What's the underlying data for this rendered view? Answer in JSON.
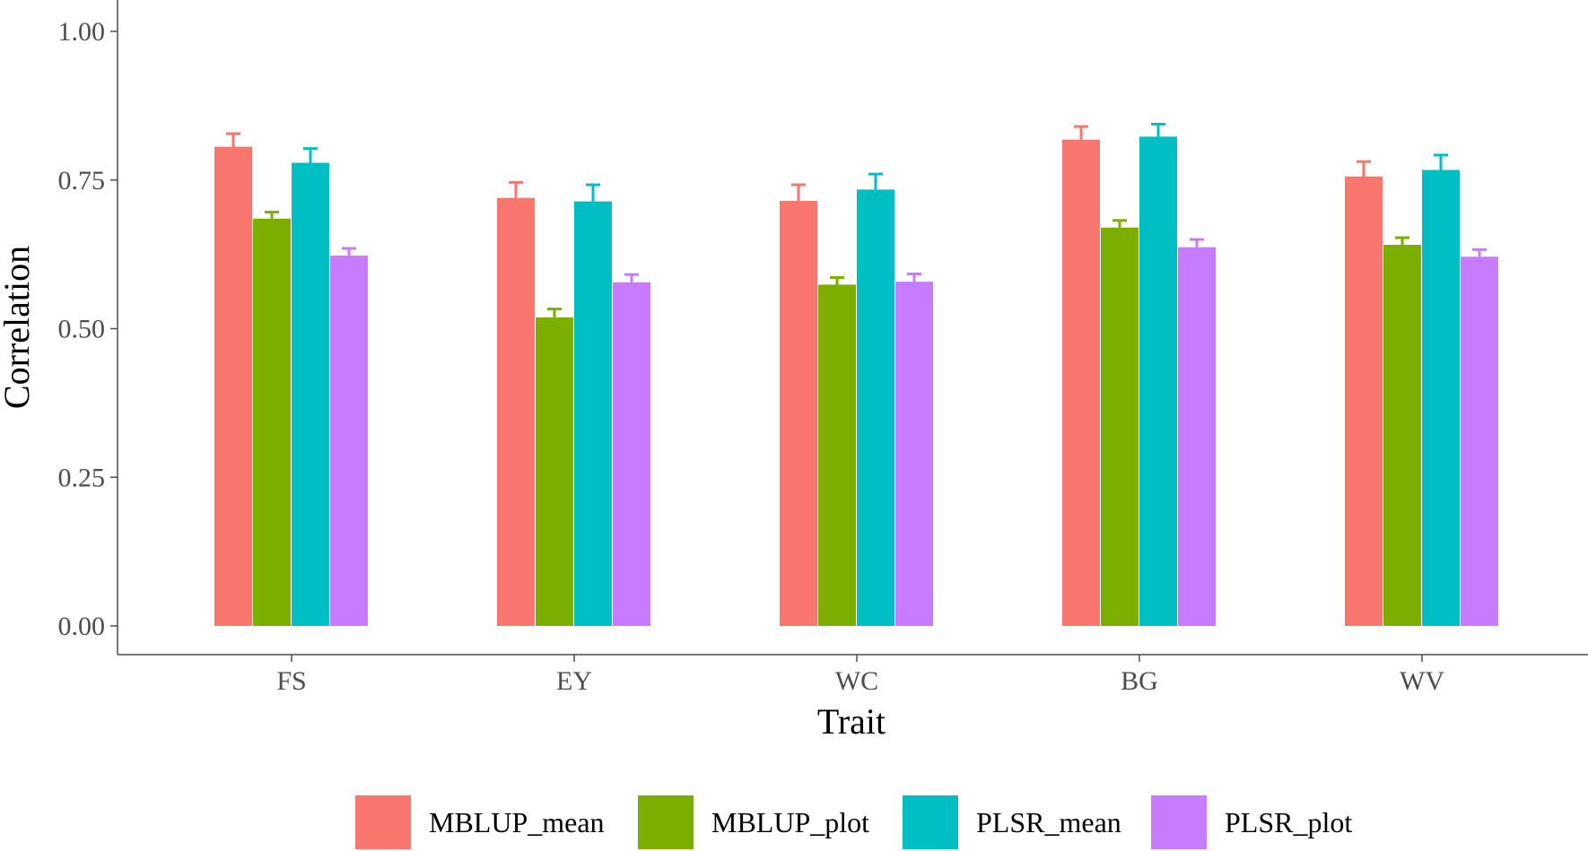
{
  "chart_data": {
    "type": "bar",
    "xlabel": "Trait",
    "ylabel": "Correlation",
    "ylim": [
      0,
      1.0
    ],
    "yticks": [
      "0.00",
      "0.25",
      "0.50",
      "0.75",
      "1.00"
    ],
    "ytick_values": [
      0,
      0.25,
      0.5,
      0.75,
      1.0
    ],
    "grid": false,
    "legend_position": "bottom",
    "categories": [
      "FS",
      "EY",
      "WC",
      "BG",
      "WV"
    ],
    "series": [
      {
        "name": "MBLUP_mean",
        "color": "#F8766D",
        "values": [
          0.806,
          0.72,
          0.715,
          0.818,
          0.756
        ],
        "errors": [
          0.022,
          0.026,
          0.027,
          0.022,
          0.025
        ]
      },
      {
        "name": "MBLUP_plot",
        "color": "#7CAE00",
        "values": [
          0.685,
          0.519,
          0.574,
          0.67,
          0.641
        ],
        "errors": [
          0.011,
          0.014,
          0.012,
          0.012,
          0.012
        ]
      },
      {
        "name": "PLSR_mean",
        "color": "#00BFC4",
        "values": [
          0.779,
          0.714,
          0.734,
          0.823,
          0.767
        ],
        "errors": [
          0.024,
          0.028,
          0.026,
          0.021,
          0.025
        ]
      },
      {
        "name": "PLSR_plot",
        "color": "#C77CFF",
        "values": [
          0.623,
          0.578,
          0.579,
          0.637,
          0.621
        ],
        "errors": [
          0.012,
          0.013,
          0.013,
          0.013,
          0.012
        ]
      }
    ]
  }
}
